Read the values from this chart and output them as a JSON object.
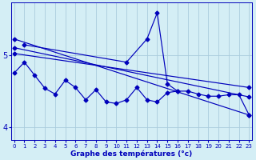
{
  "xlabel": "Graphe des températures (°c)",
  "bg_color": "#d4eef5",
  "grid_color": "#aaccdd",
  "line_color": "#0000bb",
  "x_ticks": [
    0,
    1,
    2,
    3,
    4,
    5,
    6,
    7,
    8,
    9,
    10,
    11,
    12,
    13,
    14,
    15,
    16,
    17,
    18,
    19,
    20,
    21,
    22,
    23
  ],
  "y_ticks": [
    4,
    5
  ],
  "ylim": [
    3.82,
    5.72
  ],
  "xlim": [
    -0.3,
    23.3
  ],
  "zigzag_x": [
    0,
    1,
    2,
    3,
    4,
    5,
    6,
    7,
    8,
    9,
    10,
    11,
    12,
    13,
    14,
    15,
    16,
    17,
    18,
    19,
    20,
    21,
    22,
    23
  ],
  "zigzag_y": [
    4.75,
    4.9,
    4.72,
    4.54,
    4.46,
    4.65,
    4.55,
    4.38,
    4.52,
    4.35,
    4.33,
    4.38,
    4.55,
    4.38,
    4.35,
    4.48,
    4.5,
    4.5,
    4.46,
    4.43,
    4.43,
    4.45,
    4.45,
    4.17
  ],
  "peak_x": [
    1,
    11,
    13,
    14,
    15,
    16
  ],
  "peak_y": [
    5.14,
    4.9,
    5.22,
    5.58,
    4.6,
    4.5
  ],
  "trend1_x": [
    0,
    23
  ],
  "trend1_y": [
    5.22,
    4.17
  ],
  "trend2_x": [
    0,
    23
  ],
  "trend2_y": [
    5.1,
    4.42
  ],
  "trend3_x": [
    0,
    23
  ],
  "trend3_y": [
    5.02,
    4.55
  ]
}
